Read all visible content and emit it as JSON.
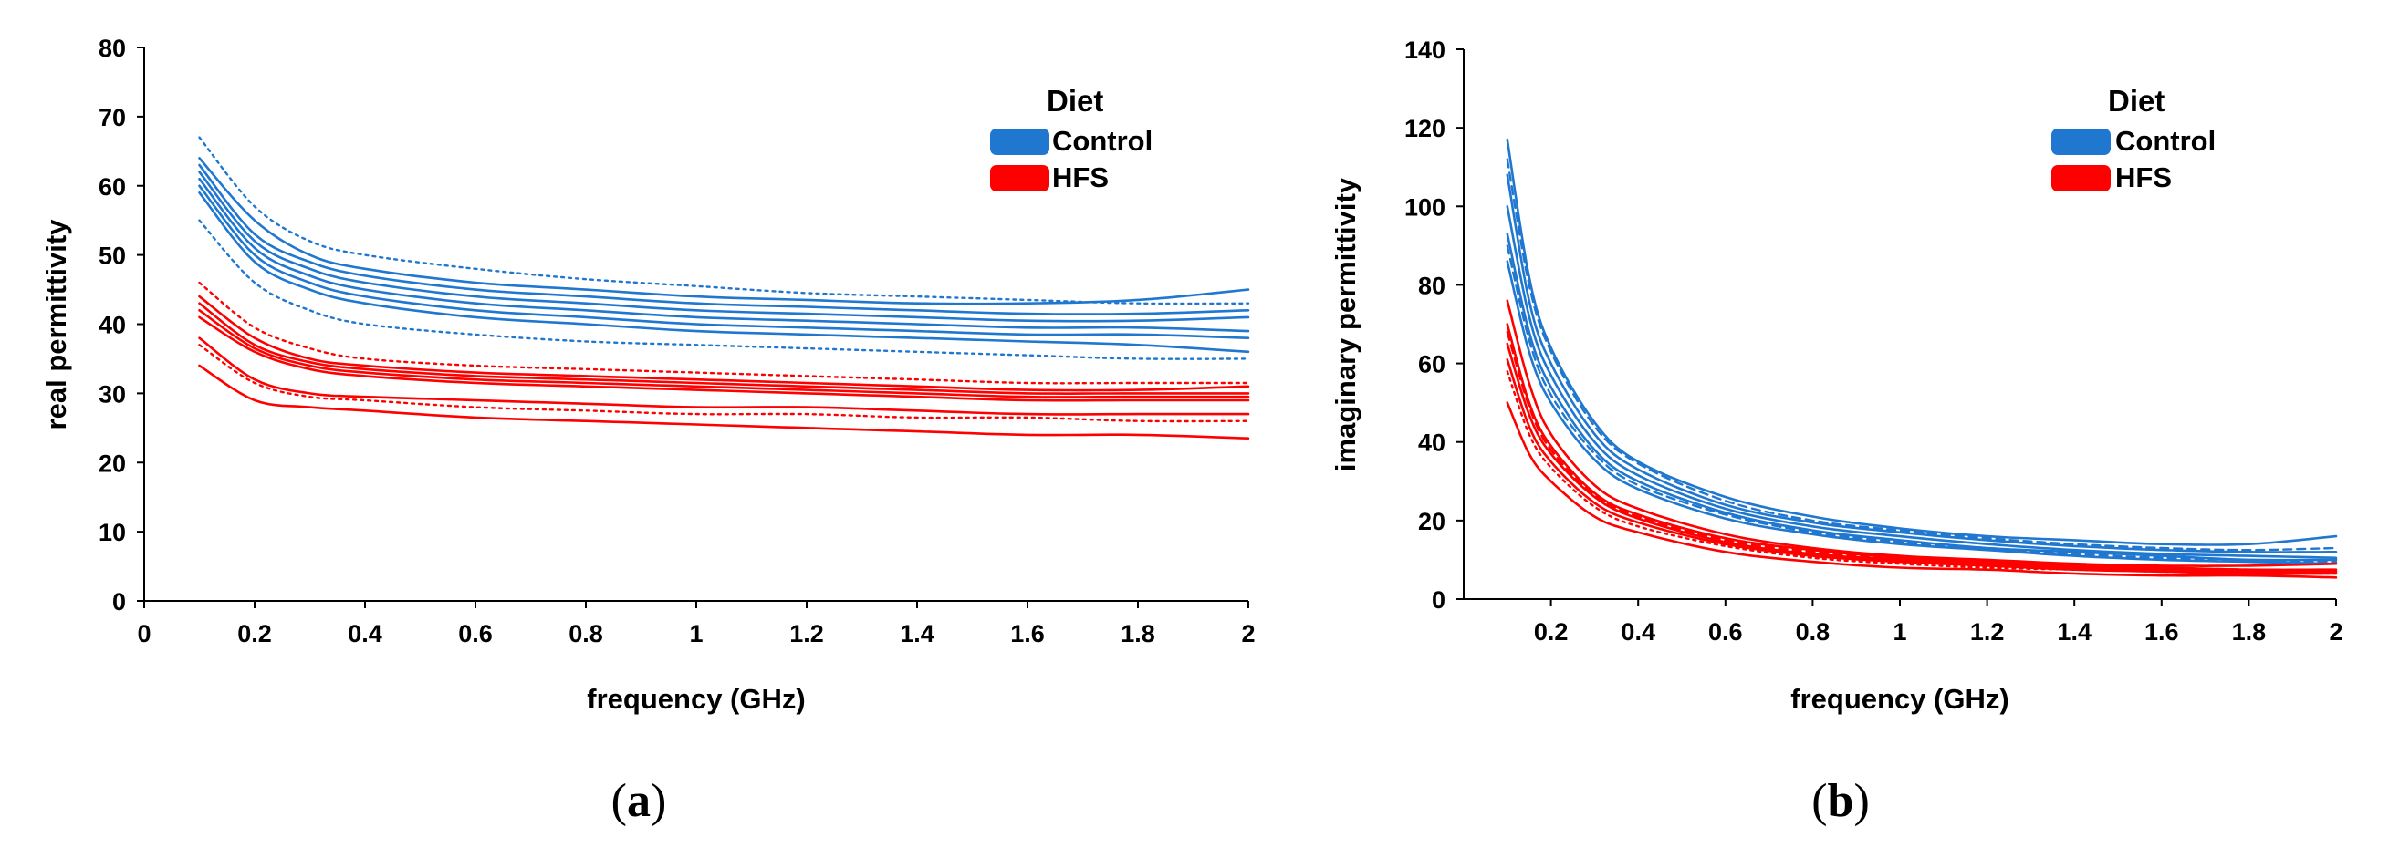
{
  "chart_data": [
    {
      "type": "line",
      "panel": "a",
      "panel_label_open": "(",
      "panel_label_letter": "a",
      "panel_label_close": ")",
      "xlabel": "frequency (GHz)",
      "ylabel": "real permittivity",
      "xlim": [
        0,
        2
      ],
      "ylim": [
        0,
        80
      ],
      "xticks": [
        "0",
        "0.2",
        "0.4",
        "0.6",
        "0.8",
        "1",
        "1.2",
        "1.4",
        "1.6",
        "1.8",
        "2"
      ],
      "yticks": [
        "0",
        "10",
        "20",
        "30",
        "40",
        "50",
        "60",
        "70",
        "80"
      ],
      "grid": false,
      "legend": {
        "title": "Diet",
        "position": "top-right",
        "entries": [
          {
            "label": "Control",
            "color": "#1f77d0"
          },
          {
            "label": "HFS",
            "color": "#ff0000"
          }
        ]
      },
      "x": [
        0.1,
        0.2,
        0.3,
        0.4,
        0.6,
        0.8,
        1.0,
        1.2,
        1.4,
        1.6,
        1.8,
        2.0
      ],
      "series": [
        {
          "name": "Control",
          "style": "solid",
          "values": [
            64,
            55,
            50,
            48,
            46,
            45,
            44,
            43.5,
            43,
            43,
            43.5,
            45
          ]
        },
        {
          "name": "Control",
          "style": "solid",
          "values": [
            63,
            53,
            49,
            47,
            45,
            44,
            43,
            42.5,
            42,
            41.5,
            41.5,
            42
          ]
        },
        {
          "name": "Control",
          "style": "solid",
          "values": [
            62,
            52,
            48,
            46,
            44,
            43,
            42,
            41.5,
            41,
            40.5,
            40.5,
            41
          ]
        },
        {
          "name": "Control",
          "style": "solid",
          "values": [
            61,
            51,
            47,
            45,
            43,
            42,
            41,
            40.5,
            40,
            39.5,
            39.5,
            39
          ]
        },
        {
          "name": "Control",
          "style": "solid",
          "values": [
            60,
            50,
            46,
            44,
            42,
            41,
            40,
            39.5,
            39,
            38.5,
            38.5,
            38
          ]
        },
        {
          "name": "Control",
          "style": "solid",
          "values": [
            59,
            49,
            45,
            43,
            41,
            40,
            39,
            38.5,
            38,
            37.5,
            37,
            36
          ]
        },
        {
          "name": "Control",
          "style": "dotted",
          "values": [
            67,
            57,
            52,
            50,
            48,
            46.5,
            45.5,
            44.5,
            44,
            43.5,
            43,
            43
          ]
        },
        {
          "name": "Control",
          "style": "dotted",
          "values": [
            55,
            46,
            42,
            40,
            38.5,
            37.5,
            37,
            36.5,
            36,
            35.5,
            35,
            35
          ]
        },
        {
          "name": "HFS",
          "style": "solid",
          "values": [
            44,
            38,
            35,
            34,
            33,
            32.5,
            32,
            31.5,
            31,
            30.5,
            30.5,
            31
          ]
        },
        {
          "name": "HFS",
          "style": "solid",
          "values": [
            43,
            37,
            34.5,
            33.5,
            32.5,
            32,
            31.5,
            31,
            30.5,
            30,
            30,
            30
          ]
        },
        {
          "name": "HFS",
          "style": "solid",
          "values": [
            42,
            36.5,
            34,
            33,
            32,
            31.5,
            31,
            30.5,
            30,
            29.5,
            29.5,
            29.5
          ]
        },
        {
          "name": "HFS",
          "style": "solid",
          "values": [
            41,
            36,
            33.5,
            32.5,
            31.5,
            31,
            30.5,
            30,
            29.5,
            29,
            29,
            29
          ]
        },
        {
          "name": "HFS",
          "style": "solid",
          "values": [
            38,
            32,
            30,
            29.5,
            29,
            28.5,
            28,
            28,
            27.5,
            27,
            27,
            27
          ]
        },
        {
          "name": "HFS",
          "style": "solid",
          "values": [
            34,
            29,
            28,
            27.5,
            26.5,
            26,
            25.5,
            25,
            24.5,
            24,
            24,
            23.5
          ]
        },
        {
          "name": "HFS",
          "style": "dotted",
          "values": [
            46,
            39.5,
            36.5,
            35,
            34,
            33.5,
            33,
            32.5,
            32,
            31.5,
            31.5,
            31.5
          ]
        },
        {
          "name": "HFS",
          "style": "dotted",
          "values": [
            37,
            31.5,
            29.5,
            29,
            28,
            27.5,
            27,
            27,
            26.5,
            26.5,
            26,
            26
          ]
        }
      ]
    },
    {
      "type": "line",
      "panel": "b",
      "panel_label_open": "(",
      "panel_label_letter": "b",
      "panel_label_close": ")",
      "xlabel": "frequency (GHz)",
      "ylabel": "imaginary permittivity",
      "xlim": [
        0,
        2
      ],
      "ylim": [
        0,
        140
      ],
      "xticks": [
        "0.2",
        "0.4",
        "0.6",
        "0.8",
        "1",
        "1.2",
        "1.4",
        "1.6",
        "1.8",
        "2"
      ],
      "yticks": [
        "0",
        "20",
        "40",
        "60",
        "80",
        "100",
        "120",
        "140"
      ],
      "grid": false,
      "legend": {
        "title": "Diet",
        "position": "top-right",
        "entries": [
          {
            "label": "Control",
            "color": "#1f77d0"
          },
          {
            "label": "HFS",
            "color": "#ff0000"
          }
        ]
      },
      "x": [
        0.1,
        0.15,
        0.2,
        0.3,
        0.4,
        0.6,
        0.8,
        1.0,
        1.2,
        1.4,
        1.6,
        1.8,
        2.0
      ],
      "series": [
        {
          "name": "Control",
          "style": "solid",
          "values": [
            117,
            82,
            64,
            45,
            35,
            26,
            21,
            18,
            16,
            15,
            14,
            14,
            16
          ]
        },
        {
          "name": "Control",
          "style": "solid",
          "values": [
            108,
            76,
            60,
            42,
            33,
            24,
            19.5,
            17,
            15,
            13.5,
            12.5,
            12,
            12
          ]
        },
        {
          "name": "Control",
          "style": "solid",
          "values": [
            100,
            72,
            57,
            40,
            31.5,
            23,
            18.5,
            16,
            14,
            12.5,
            11.5,
            11,
            10.5
          ]
        },
        {
          "name": "Control",
          "style": "solid",
          "values": [
            93,
            68,
            54,
            38,
            30,
            22,
            17.5,
            15,
            13,
            12,
            11,
            10,
            10
          ]
        },
        {
          "name": "Control",
          "style": "solid",
          "values": [
            86,
            63,
            50,
            35.5,
            28,
            20.5,
            16.5,
            14,
            12.5,
            11,
            10,
            9.5,
            9
          ]
        },
        {
          "name": "Control",
          "style": "dashed",
          "values": [
            112,
            80,
            63,
            44,
            34.5,
            25,
            20,
            17.5,
            15.5,
            14,
            13,
            12.5,
            13
          ]
        },
        {
          "name": "Control",
          "style": "dashed",
          "values": [
            90,
            66,
            52,
            37,
            29,
            21.5,
            17,
            14.5,
            13,
            11.5,
            10.5,
            10,
            9.5
          ]
        },
        {
          "name": "HFS",
          "style": "solid",
          "values": [
            76,
            55,
            42,
            29,
            23,
            16.5,
            13,
            11,
            10,
            9,
            8.5,
            8.5,
            9
          ]
        },
        {
          "name": "HFS",
          "style": "solid",
          "values": [
            70,
            50,
            39,
            27,
            21.5,
            15.5,
            12.5,
            10.5,
            9.5,
            8.5,
            8,
            7.5,
            7.5
          ]
        },
        {
          "name": "HFS",
          "style": "solid",
          "values": [
            65,
            47,
            37,
            26,
            20.5,
            14.5,
            11.5,
            10,
            9,
            8,
            7.5,
            7,
            7
          ]
        },
        {
          "name": "HFS",
          "style": "solid",
          "values": [
            61,
            44,
            35,
            24.5,
            19.5,
            14,
            11,
            9.5,
            8.5,
            7.5,
            7,
            6.5,
            6.5
          ]
        },
        {
          "name": "HFS",
          "style": "solid",
          "values": [
            50,
            37,
            30,
            21,
            17,
            12,
            9.5,
            8,
            7.5,
            6.5,
            6,
            6,
            5.5
          ]
        },
        {
          "name": "HFS",
          "style": "dashed",
          "values": [
            68,
            49,
            38,
            26.5,
            21,
            15,
            12,
            10.5,
            9.5,
            8.5,
            8,
            7.5,
            7.5
          ]
        },
        {
          "name": "HFS",
          "style": "dotted",
          "values": [
            58,
            42,
            33.5,
            23.5,
            18.5,
            13.5,
            10.5,
            9,
            8,
            7.5,
            7,
            6.5,
            6.5
          ]
        }
      ]
    }
  ]
}
